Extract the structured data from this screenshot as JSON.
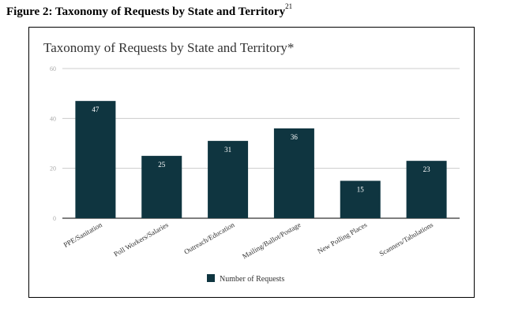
{
  "figure": {
    "caption": "Figure 2: Taxonomy of Requests by State and Territory",
    "footnote_ref": "21"
  },
  "chart_data": {
    "type": "bar",
    "title": "Taxonomy of Requests by State and Territory*",
    "categories": [
      "PPE/Sanitation",
      "Poll Workers/Salaries",
      "Outreach/Education",
      "Mailing/Ballot/Postage",
      "New Polling Places",
      "Scanners/Tabulations"
    ],
    "series": [
      {
        "name": "Number of Requests",
        "values": [
          47,
          25,
          31,
          36,
          15,
          23
        ]
      }
    ],
    "ylim": [
      0,
      60
    ],
    "yticks": [
      "0",
      "20",
      "40",
      "60"
    ],
    "xlabel": "",
    "ylabel": "",
    "grid": true,
    "legend": "bottom",
    "colors": {
      "bar": "#0f3540",
      "bar_label": "#ffffff",
      "grid": "#cccccc",
      "axis": "#333333",
      "tick_text": "#aaaaaa",
      "title_text": "#333333"
    }
  }
}
